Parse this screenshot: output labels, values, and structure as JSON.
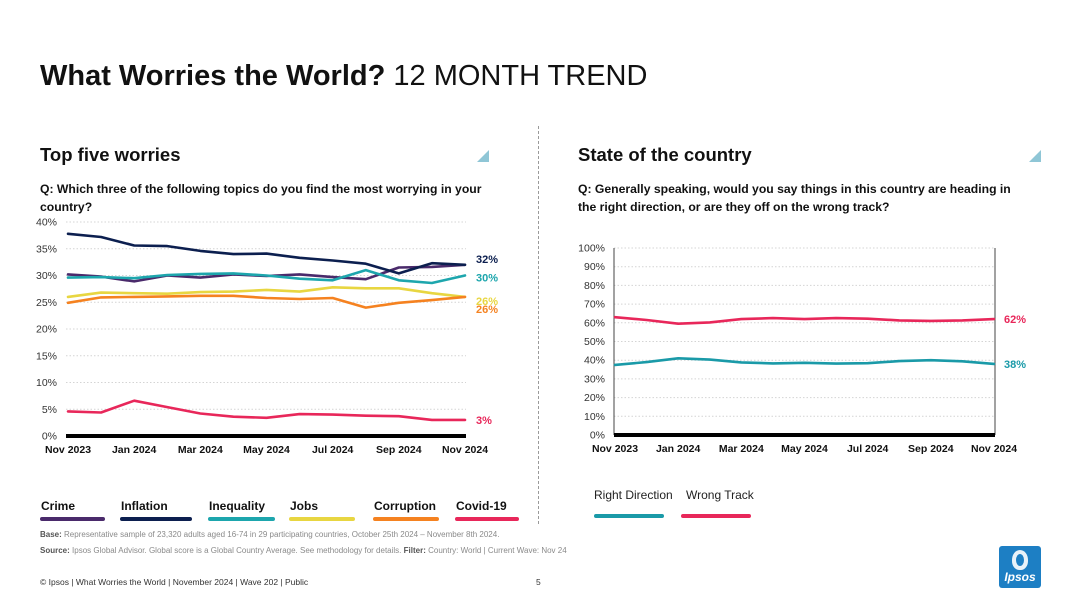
{
  "header": {
    "title_bold": "What Worries the World?",
    "title_light": "12 MONTH TREND"
  },
  "left_panel": {
    "title": "Top five worries",
    "question": "Q: Which three of the following topics do you find the most worrying in your country?"
  },
  "right_panel": {
    "title": "State of the country",
    "question": "Q: Generally speaking, would you say things in this country are heading in the right direction, or are they off on the wrong track?"
  },
  "colors": {
    "crime": "#4a2a6b",
    "inflation": "#0c1f4f",
    "inequality": "#1da6ad",
    "jobs": "#e8d641",
    "corruption": "#f58220",
    "covid": "#e8275a",
    "right_direction": "#1a9aa8",
    "wrong_track": "#e8275a",
    "accent": "#8fc6d6"
  },
  "chart_data": [
    {
      "type": "line",
      "title": "Top five worries",
      "categories": [
        "Nov 2023",
        "Dec 2023",
        "Jan 2024",
        "Feb 2024",
        "Mar 2024",
        "Apr 2024",
        "May 2024",
        "Jun 2024",
        "Jul 2024",
        "Aug 2024",
        "Sep 2024",
        "Oct 2024",
        "Nov 2024"
      ],
      "x_tick_labels": [
        "Nov 2023",
        "Jan 2024",
        "Mar 2024",
        "May 2024",
        "Jul 2024",
        "Sep 2024",
        "Nov 2024"
      ],
      "y_tick_labels": [
        "0%",
        "5%",
        "10%",
        "15%",
        "20%",
        "25%",
        "30%",
        "35%",
        "40%"
      ],
      "ylim": [
        0,
        40
      ],
      "series": [
        {
          "key": "crime",
          "name": "Crime",
          "values": [
            30.2,
            29.8,
            28.9,
            30.0,
            29.6,
            30.2,
            29.9,
            30.2,
            29.7,
            29.3,
            31.5,
            31.6,
            32.0
          ],
          "end_label": ""
        },
        {
          "key": "inflation",
          "name": "Inflation",
          "values": [
            37.8,
            37.2,
            35.6,
            35.5,
            34.6,
            34.0,
            34.1,
            33.3,
            32.8,
            32.2,
            30.4,
            32.3,
            32.0
          ],
          "end_label": "32%"
        },
        {
          "key": "inequality",
          "name": "Inequality",
          "values": [
            29.6,
            29.7,
            29.5,
            30.1,
            30.3,
            30.4,
            30.0,
            29.4,
            29.1,
            31.0,
            29.1,
            28.6,
            30.0
          ],
          "end_label": "30%"
        },
        {
          "key": "jobs",
          "name": "Jobs",
          "values": [
            26.0,
            26.8,
            26.7,
            26.6,
            26.9,
            27.0,
            27.3,
            27.0,
            27.8,
            27.6,
            27.6,
            26.7,
            26.0
          ],
          "end_label": "26%"
        },
        {
          "key": "corruption",
          "name": "Corruption",
          "values": [
            24.9,
            25.9,
            26.0,
            26.1,
            26.2,
            26.2,
            25.8,
            25.6,
            25.8,
            24.0,
            24.9,
            25.4,
            26.0
          ],
          "end_label": "26%"
        },
        {
          "key": "covid",
          "name": "Covid-19",
          "values": [
            4.6,
            4.4,
            6.6,
            5.4,
            4.2,
            3.6,
            3.4,
            4.1,
            4.0,
            3.8,
            3.7,
            3.0,
            3.0
          ],
          "end_label": "3%"
        }
      ]
    },
    {
      "type": "line",
      "title": "State of the country",
      "categories": [
        "Nov 2023",
        "Dec 2023",
        "Jan 2024",
        "Feb 2024",
        "Mar 2024",
        "Apr 2024",
        "May 2024",
        "Jun 2024",
        "Jul 2024",
        "Aug 2024",
        "Sep 2024",
        "Oct 2024",
        "Nov 2024"
      ],
      "x_tick_labels": [
        "Nov 2023",
        "Jan 2024",
        "Mar 2024",
        "May 2024",
        "Jul 2024",
        "Sep 2024",
        "Nov 2024"
      ],
      "y_tick_labels": [
        "0%",
        "10%",
        "20%",
        "30%",
        "40%",
        "50%",
        "60%",
        "70%",
        "80%",
        "90%",
        "100%"
      ],
      "ylim": [
        0,
        100
      ],
      "series": [
        {
          "key": "wrong_track",
          "name": "Wrong Track",
          "values": [
            63.0,
            61.5,
            59.5,
            60.2,
            62.0,
            62.5,
            62.0,
            62.5,
            62.2,
            61.3,
            61.0,
            61.3,
            62.0
          ],
          "end_label": "62%"
        },
        {
          "key": "right_direction",
          "name": "Right Direction",
          "values": [
            37.5,
            39.0,
            41.0,
            40.3,
            38.8,
            38.3,
            38.6,
            38.2,
            38.4,
            39.5,
            40.0,
            39.4,
            38.0
          ],
          "end_label": "38%"
        }
      ]
    }
  ],
  "legend_left": [
    {
      "key": "crime",
      "label": "Crime"
    },
    {
      "key": "inflation",
      "label": "Inflation"
    },
    {
      "key": "inequality",
      "label": "Inequality"
    },
    {
      "key": "jobs",
      "label": "Jobs"
    },
    {
      "key": "corruption",
      "label": "Corruption"
    },
    {
      "key": "covid",
      "label": "Covid-19"
    }
  ],
  "legend_right": [
    {
      "key": "right_direction",
      "label": "Right Direction"
    },
    {
      "key": "wrong_track",
      "label": "Wrong Track"
    }
  ],
  "footnotes": {
    "base_label": "Base:",
    "base_text": "Representative sample of 23,320 adults aged 16-74 in 29 participating countries, October 25th 2024 – November 8th 2024.",
    "source_label": "Source:",
    "source_text": "Ipsos Global Advisor. Global score is a Global Country Average. See methodology for details.",
    "filter_label": "Filter:",
    "filter_text": "Country: World | Current Wave: Nov 24"
  },
  "footer": {
    "text": "© Ipsos | What Worries the World | November 2024 | Wave 202 | Public",
    "page": "5",
    "logo": "Ipsos"
  }
}
